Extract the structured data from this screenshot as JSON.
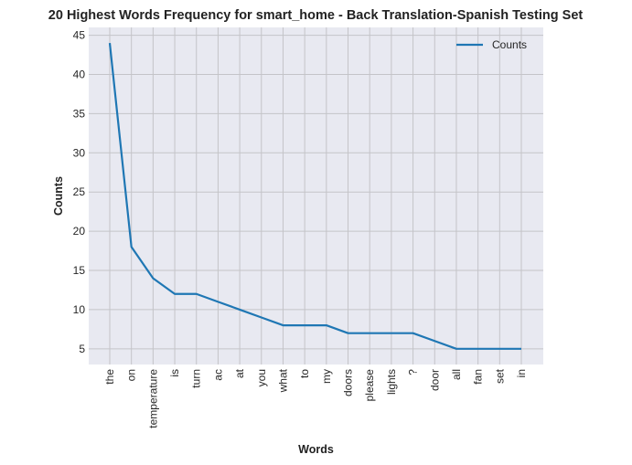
{
  "chart_data": {
    "type": "line",
    "title": "20 Highest Words Frequency for smart_home - Back Translation-Spanish Testing Set",
    "xlabel": "Words",
    "ylabel": "Counts",
    "categories": [
      "the",
      "on",
      "temperature",
      "is",
      "turn",
      "ac",
      "at",
      "you",
      "what",
      "to",
      "my",
      "doors",
      "please",
      "lights",
      "?",
      "door",
      "all",
      "fan",
      "set",
      "in"
    ],
    "series": [
      {
        "name": "Counts",
        "values": [
          44,
          18,
          14,
          12,
          12,
          11,
          10,
          9,
          8,
          8,
          8,
          7,
          7,
          7,
          7,
          6,
          5,
          5,
          5,
          5
        ]
      }
    ],
    "ylim": [
      3,
      46
    ],
    "yticks": [
      5,
      10,
      15,
      20,
      25,
      30,
      35,
      40,
      45
    ],
    "grid": true,
    "legend_position": "top-right",
    "colors": {
      "line": "#1f77b4",
      "plot_bg": "#e8e9f1",
      "grid": "#c4c4c8"
    }
  }
}
